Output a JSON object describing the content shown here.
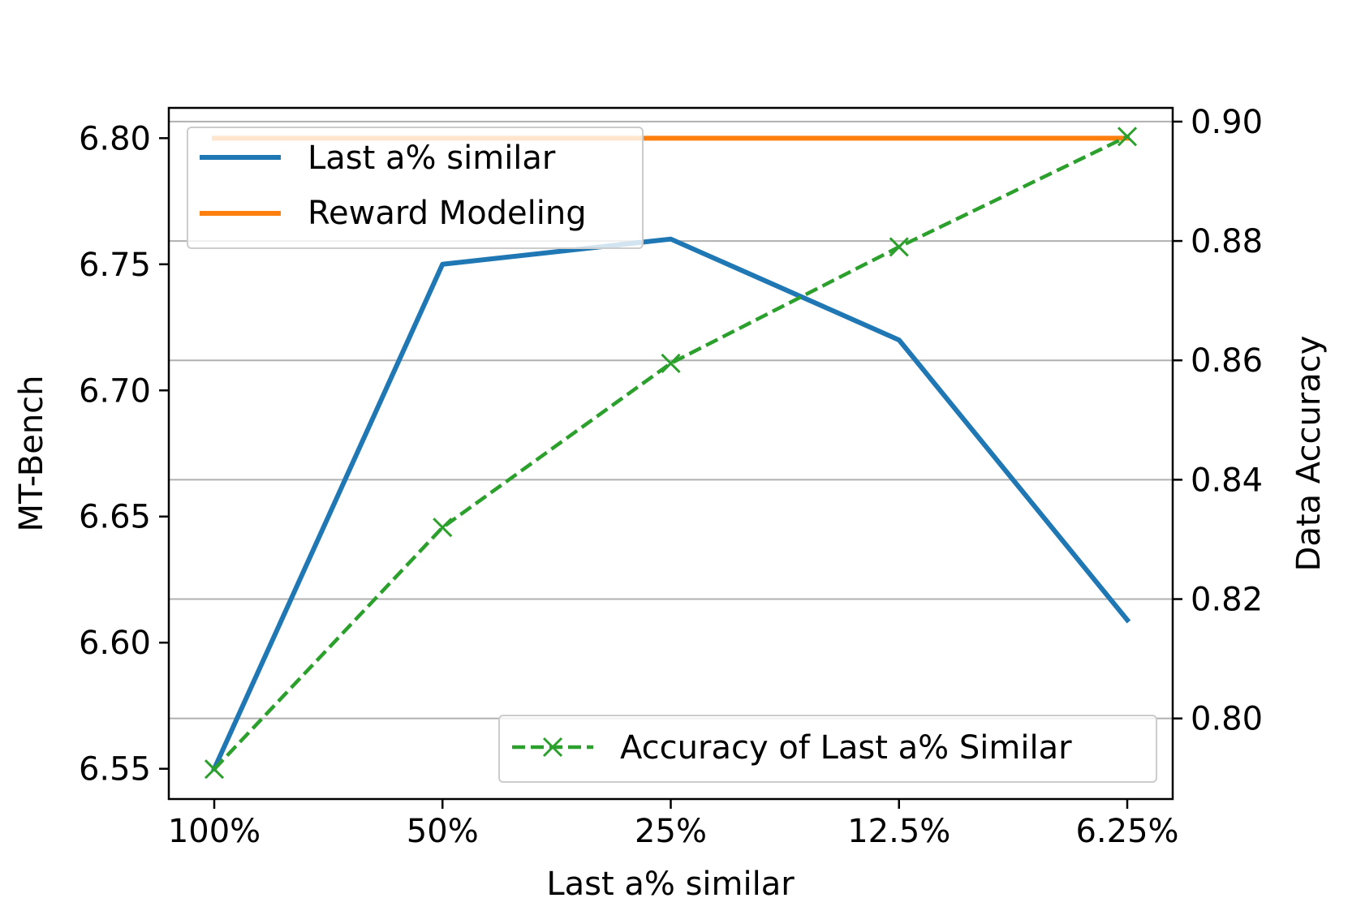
{
  "chart_data": {
    "type": "line",
    "categories": [
      "100%",
      "50%",
      "25%",
      "12.5%",
      "6.25%"
    ],
    "xlabel": "Last a% similar",
    "ylabel": "MT-Bench",
    "y2label": "Data Accuracy",
    "ylim": [
      6.538,
      6.812
    ],
    "y2lim": [
      0.7865,
      0.9023
    ],
    "yticks": [
      "6.55",
      "6.60",
      "6.65",
      "6.70",
      "6.75",
      "6.80"
    ],
    "y2ticks": [
      "0.80",
      "0.82",
      "0.84",
      "0.86",
      "0.88",
      "0.90"
    ],
    "grid": "right-axis horizontal",
    "series": [
      {
        "name": "Last a% similar",
        "axis": "left",
        "color": "#1f77b4",
        "style": "solid",
        "values": [
          6.55,
          6.75,
          6.76,
          6.72,
          6.609
        ]
      },
      {
        "name": "Reward Modeling",
        "axis": "left",
        "color": "#ff7f0e",
        "style": "solid",
        "values": [
          6.8,
          6.8,
          6.8,
          6.8,
          6.8
        ]
      },
      {
        "name": "Accuracy of Last a% Similar",
        "axis": "right",
        "color": "#2ca02c",
        "style": "dashed",
        "marker": "x",
        "values": [
          0.7915,
          0.832,
          0.8595,
          0.879,
          0.8975
        ]
      }
    ],
    "legends": [
      {
        "placement": "upper-left",
        "entries": [
          "Last a% similar",
          "Reward Modeling"
        ]
      },
      {
        "placement": "lower-right",
        "entries": [
          "Accuracy of Last a% Similar"
        ]
      }
    ]
  }
}
